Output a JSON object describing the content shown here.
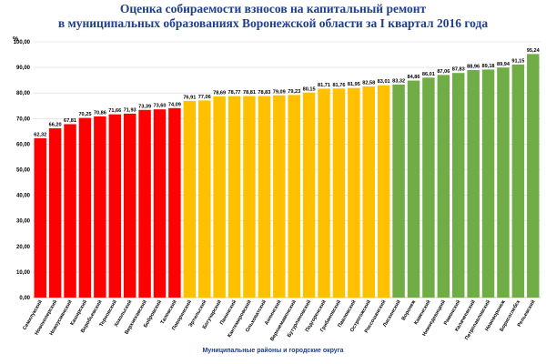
{
  "chart_data": {
    "type": "bar",
    "title_line1": "Оценка собираемости взносов на капитальный ремонт",
    "title_line2": "в муниципальных образованиях Воронежской области за I квартал 2016 года",
    "ylabel": "%",
    "xlabel": "Муниципальные районы и городские округа",
    "ylim": [
      0,
      100
    ],
    "yticks": [
      "0,00",
      "10,00",
      "20,00",
      "30,00",
      "40,00",
      "50,00",
      "60,00",
      "70,00",
      "80,00",
      "90,00",
      "100,00"
    ],
    "grid": true,
    "colors": {
      "red": "#ff0000",
      "yellow": "#ffc000",
      "green": "#70ad47"
    },
    "bars": [
      {
        "name": "Семилукский",
        "value": 62.32,
        "label": "62,32",
        "color": "red"
      },
      {
        "name": "Новохоперский",
        "value": 66.2,
        "label": "66,20",
        "color": "red"
      },
      {
        "name": "Новоусманский",
        "value": 67.81,
        "label": "67,81",
        "color": "red"
      },
      {
        "name": "Каширский",
        "value": 70.25,
        "label": "70,25",
        "color": "red"
      },
      {
        "name": "Воробьевский",
        "value": 70.86,
        "label": "70,86",
        "color": "red"
      },
      {
        "name": "Терновский",
        "value": 71.66,
        "label": "71,66",
        "color": "red"
      },
      {
        "name": "Хохольский",
        "value": 71.93,
        "label": "71,93",
        "color": "red"
      },
      {
        "name": "Верхнехавский",
        "value": 73.39,
        "label": "73,39",
        "color": "red"
      },
      {
        "name": "Бобровский",
        "value": 73.6,
        "label": "73,60",
        "color": "red"
      },
      {
        "name": "Таловский",
        "value": 74.09,
        "label": "74,09",
        "color": "red"
      },
      {
        "name": "Поворинский",
        "value": 76.91,
        "label": "76,91",
        "color": "yellow"
      },
      {
        "name": "Эртильский",
        "value": 77.06,
        "label": "77,06",
        "color": "yellow"
      },
      {
        "name": "Богучарский",
        "value": 78.69,
        "label": "78,69",
        "color": "yellow"
      },
      {
        "name": "Панинский",
        "value": 78.77,
        "label": "78,77",
        "color": "yellow"
      },
      {
        "name": "Кантемировский",
        "value": 78.81,
        "label": "78,81",
        "color": "yellow"
      },
      {
        "name": "Ольховатский",
        "value": 78.83,
        "label": "78,83",
        "color": "yellow"
      },
      {
        "name": "Аннинский",
        "value": 79.09,
        "label": "79,09",
        "color": "yellow"
      },
      {
        "name": "Верхнемамонский",
        "value": 79.23,
        "label": "79,23",
        "color": "yellow"
      },
      {
        "name": "Бутурлиновский",
        "value": 80.15,
        "label": "80,15",
        "color": "yellow"
      },
      {
        "name": "Подгоренский",
        "value": 81.71,
        "label": "81,71",
        "color": "yellow"
      },
      {
        "name": "Грибановский",
        "value": 81.76,
        "label": "81,76",
        "color": "yellow"
      },
      {
        "name": "Павловский",
        "value": 81.95,
        "label": "81,95",
        "color": "yellow"
      },
      {
        "name": "Острогожский",
        "value": 82.58,
        "label": "82,58",
        "color": "yellow"
      },
      {
        "name": "Россошанский",
        "value": 83.01,
        "label": "83,01",
        "color": "yellow"
      },
      {
        "name": "Лискинский",
        "value": 83.32,
        "label": "83,32",
        "color": "green"
      },
      {
        "name": "Воронеж",
        "value": 84.86,
        "label": "84,86",
        "color": "green"
      },
      {
        "name": "Каменский",
        "value": 86.01,
        "label": "86,01",
        "color": "green"
      },
      {
        "name": "Нижнедевицкий",
        "value": 87.06,
        "label": "87,06",
        "color": "green"
      },
      {
        "name": "Рамонский",
        "value": 87.83,
        "label": "87,83",
        "color": "green"
      },
      {
        "name": "Калачеевский",
        "value": 88.96,
        "label": "88,96",
        "color": "green"
      },
      {
        "name": "Петропавловский",
        "value": 89.18,
        "label": "89,18",
        "color": "green"
      },
      {
        "name": "Нововоронеж",
        "value": 89.94,
        "label": "89,94",
        "color": "green"
      },
      {
        "name": "Борисоглебск",
        "value": 91.15,
        "label": "91,15",
        "color": "green"
      },
      {
        "name": "Репьевский",
        "value": 95.24,
        "label": "95,24",
        "color": "green"
      }
    ]
  }
}
